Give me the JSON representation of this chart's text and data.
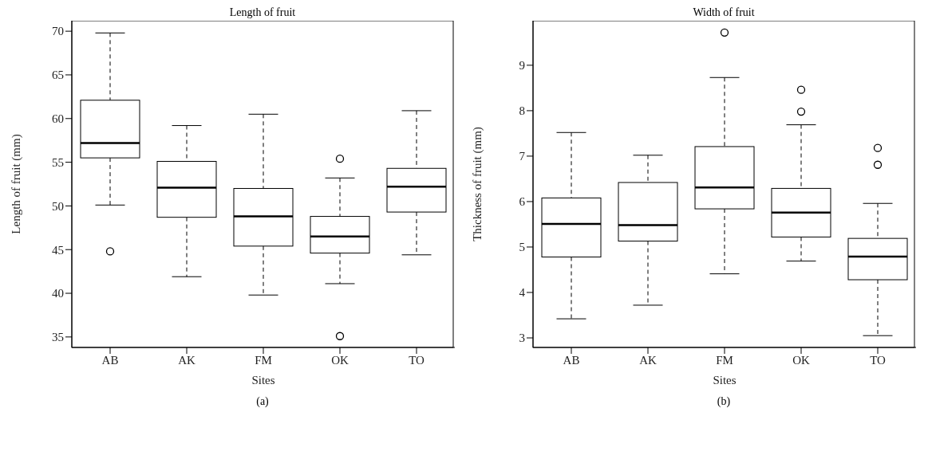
{
  "chart_data": [
    {
      "type": "box",
      "title": "Length of fruit",
      "xlabel": "Sites",
      "ylabel": "Length of fruit (mm)",
      "categories": [
        "AB",
        "AK",
        "FM",
        "OK",
        "TO"
      ],
      "boxes": [
        {
          "low": 50.1,
          "q1": 55.5,
          "median": 57.2,
          "q3": 62.1,
          "high": 69.8,
          "outliers": [
            44.8
          ]
        },
        {
          "low": 41.9,
          "q1": 48.7,
          "median": 52.1,
          "q3": 55.1,
          "high": 59.2
        },
        {
          "low": 39.8,
          "q1": 45.4,
          "median": 48.8,
          "q3": 52.0,
          "high": 60.5
        },
        {
          "low": 41.1,
          "q1": 44.6,
          "median": 46.5,
          "q3": 48.8,
          "high": 53.2,
          "outliers": [
            55.4,
            35.1
          ]
        },
        {
          "low": 44.4,
          "q1": 49.3,
          "median": 52.2,
          "q3": 54.3,
          "high": 60.9
        }
      ],
      "ylim": [
        33.8,
        71.2
      ],
      "yticks": [
        35,
        40,
        45,
        50,
        55,
        60,
        65,
        70
      ],
      "grid": false,
      "legend": false,
      "annotations": [
        "(a)"
      ]
    },
    {
      "type": "box",
      "title": "Width of fruit",
      "xlabel": "Sites",
      "ylabel": "Thickness of fruit (mm)",
      "categories": [
        "AB",
        "AK",
        "FM",
        "OK",
        "TO"
      ],
      "boxes": [
        {
          "low": 3.42,
          "q1": 4.78,
          "median": 5.51,
          "q3": 6.08,
          "high": 7.52
        },
        {
          "low": 3.72,
          "q1": 5.13,
          "median": 5.48,
          "q3": 6.42,
          "high": 7.02
        },
        {
          "low": 4.41,
          "q1": 5.84,
          "median": 6.31,
          "q3": 7.21,
          "high": 8.73,
          "outliers": [
            9.72
          ]
        },
        {
          "low": 4.69,
          "q1": 5.22,
          "median": 5.76,
          "q3": 6.29,
          "high": 7.69,
          "outliers": [
            8.46,
            7.98
          ]
        },
        {
          "low": 3.05,
          "q1": 4.28,
          "median": 4.79,
          "q3": 5.19,
          "high": 5.96,
          "outliers": [
            7.18,
            6.81
          ]
        }
      ],
      "ylim": [
        2.79,
        9.98
      ],
      "yticks": [
        3,
        4,
        5,
        6,
        7,
        8,
        9
      ],
      "grid": false,
      "legend": false,
      "annotations": [
        "(b)"
      ]
    }
  ]
}
